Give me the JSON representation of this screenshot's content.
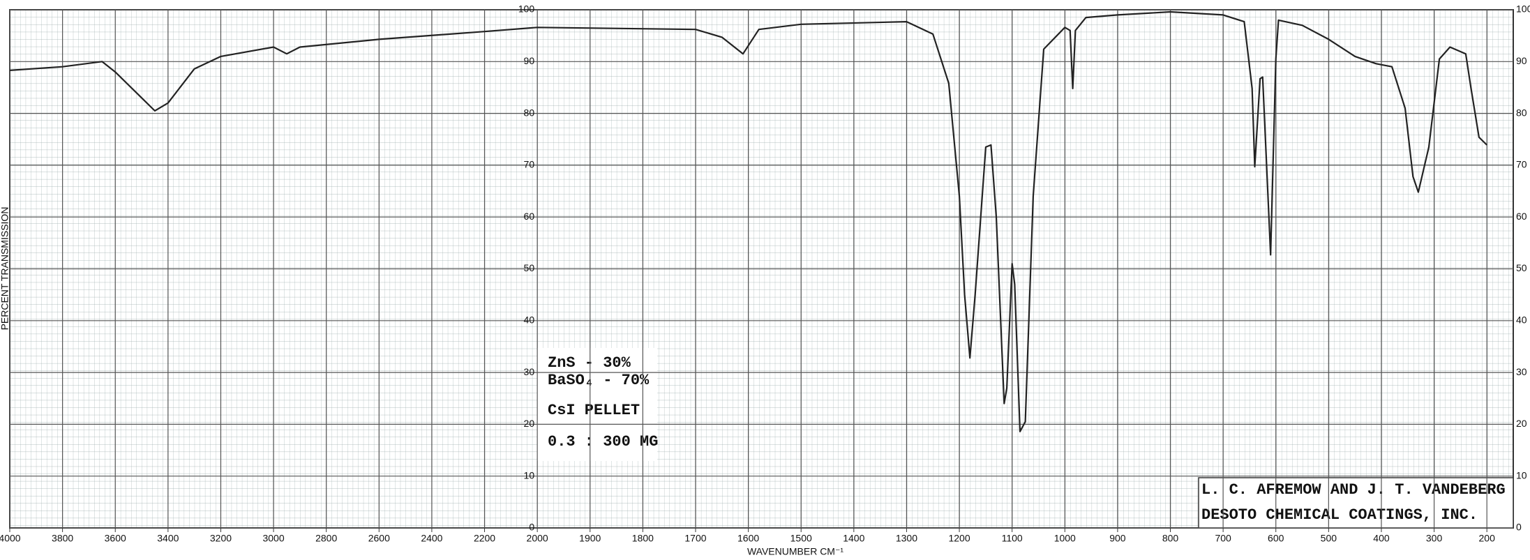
{
  "chart_data": {
    "type": "line",
    "y_label": "PERCENT TRANSMISSION",
    "x_label": "WAVENUMBER CM⁻¹",
    "annotations": [
      "ZnS - 30%",
      "BaSO₄ - 70%",
      "CsI PELLET",
      "0.3 : 300 MG",
      "L. C. AFREMOW AND J. T. VANDEBERG",
      "DESOTO CHEMICAL COATINGS, INC."
    ],
    "xlim": [
      4000,
      150
    ],
    "xscale_break": 2000,
    "xticks": [
      4000,
      3800,
      3600,
      3400,
      3200,
      3000,
      2800,
      2600,
      2400,
      2200,
      2000,
      1900,
      1800,
      1700,
      1600,
      1500,
      1400,
      1300,
      1200,
      1100,
      1000,
      900,
      800,
      700,
      600,
      500,
      400,
      300,
      200
    ],
    "ylim": [
      0,
      100
    ],
    "yticks": [
      0,
      10,
      20,
      30,
      40,
      50,
      60,
      70,
      80,
      90,
      100
    ],
    "grid": true,
    "color": "#222222",
    "series": [
      {
        "name": null,
        "color": "#222222",
        "x": [
          4000,
          3800,
          3650,
          3600,
          3500,
          3450,
          3400,
          3300,
          3200,
          3000,
          2950,
          2900,
          2600,
          2200,
          2000,
          1700,
          1650,
          1610,
          1580,
          1500,
          1300,
          1250,
          1220,
          1200,
          1190,
          1180,
          1170,
          1150,
          1140,
          1130,
          1115,
          1110,
          1100,
          1095,
          1085,
          1075,
          1060,
          1040,
          1000,
          990,
          985,
          980,
          960,
          900,
          800,
          700,
          660,
          645,
          640,
          630,
          625,
          610,
          600,
          595,
          550,
          500,
          450,
          410,
          380,
          355,
          340,
          330,
          310,
          290,
          270,
          240,
          230,
          215,
          200
        ],
        "values": [
          88.3,
          89,
          90,
          88,
          83,
          80.5,
          82,
          88.6,
          91,
          92.8,
          91.5,
          92.8,
          94.3,
          95.8,
          96.6,
          96.2,
          94.7,
          91.5,
          96.2,
          97.2,
          97.7,
          95.3,
          85.8,
          64,
          45,
          32.8,
          45,
          73.5,
          73.9,
          60,
          24,
          27,
          51,
          47,
          18.6,
          20.5,
          64,
          92.4,
          96.6,
          96,
          84.8,
          96,
          98.5,
          99,
          99.6,
          99,
          97.7,
          84.8,
          69.7,
          86.7,
          87,
          52.7,
          90.5,
          98,
          97,
          94.3,
          91,
          89.6,
          89,
          81,
          67.8,
          64.8,
          73.5,
          90.5,
          92.8,
          91.5,
          84.8,
          75.4,
          73.9
        ]
      }
    ]
  }
}
